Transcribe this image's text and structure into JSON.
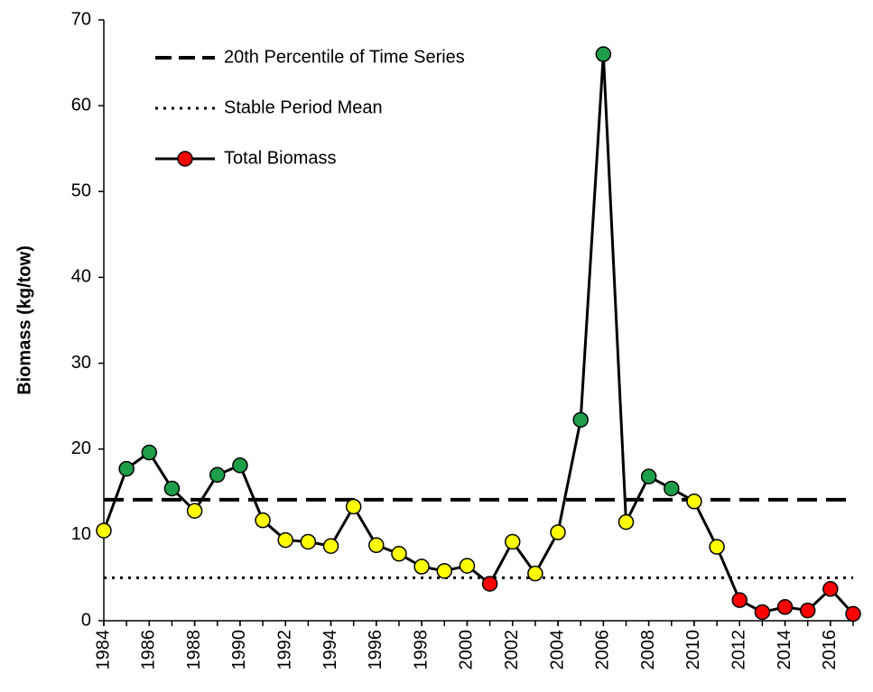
{
  "chart_data": {
    "type": "line",
    "y_label": "Biomass (kg/tow)",
    "x": [
      1984,
      1985,
      1986,
      1987,
      1988,
      1989,
      1990,
      1991,
      1992,
      1993,
      1994,
      1995,
      1996,
      1997,
      1998,
      1999,
      2000,
      2001,
      2002,
      2003,
      2004,
      2005,
      2006,
      2007,
      2008,
      2009,
      2010,
      2011,
      2012,
      2013,
      2014,
      2015,
      2016,
      2017
    ],
    "xlim": [
      1984,
      2017
    ],
    "xticks": [
      1984,
      1986,
      1988,
      1990,
      1992,
      1994,
      1996,
      1998,
      2000,
      2002,
      2004,
      2006,
      2008,
      2010,
      2012,
      2014,
      2016
    ],
    "ylim": [
      0,
      70
    ],
    "yticks": [
      0,
      10,
      20,
      30,
      40,
      50,
      60,
      70
    ],
    "reference_lines": [
      {
        "name": "20th Percentile of Time Series",
        "value": 14.1,
        "style": "dashed",
        "color": "#000000"
      },
      {
        "name": "Stable Period Mean",
        "value": 5.0,
        "style": "dotted",
        "color": "#000000"
      }
    ],
    "series": [
      {
        "name": "Total Biomass",
        "color": "#000000",
        "legend_marker_color": "#ff0000",
        "values": [
          10.5,
          17.7,
          19.6,
          15.4,
          12.8,
          17.0,
          18.1,
          11.7,
          9.4,
          9.2,
          8.7,
          13.3,
          8.8,
          7.8,
          6.3,
          5.8,
          6.4,
          4.3,
          9.2,
          5.5,
          10.3,
          23.4,
          66.0,
          11.5,
          16.8,
          15.4,
          13.9,
          8.6,
          2.4,
          1.0,
          1.6,
          1.2,
          3.7,
          0.8
        ],
        "point_colors": [
          "#ffff00",
          "#1e9e4a",
          "#1e9e4a",
          "#1e9e4a",
          "#ffff00",
          "#1e9e4a",
          "#1e9e4a",
          "#ffff00",
          "#ffff00",
          "#ffff00",
          "#ffff00",
          "#ffff00",
          "#ffff00",
          "#ffff00",
          "#ffff00",
          "#ffff00",
          "#ffff00",
          "#ff0000",
          "#ffff00",
          "#ffff00",
          "#ffff00",
          "#1e9e4a",
          "#1e9e4a",
          "#ffff00",
          "#1e9e4a",
          "#1e9e4a",
          "#ffff00",
          "#ffff00",
          "#ff0000",
          "#ff0000",
          "#ff0000",
          "#ff0000",
          "#ff0000",
          "#ff0000"
        ]
      }
    ]
  }
}
